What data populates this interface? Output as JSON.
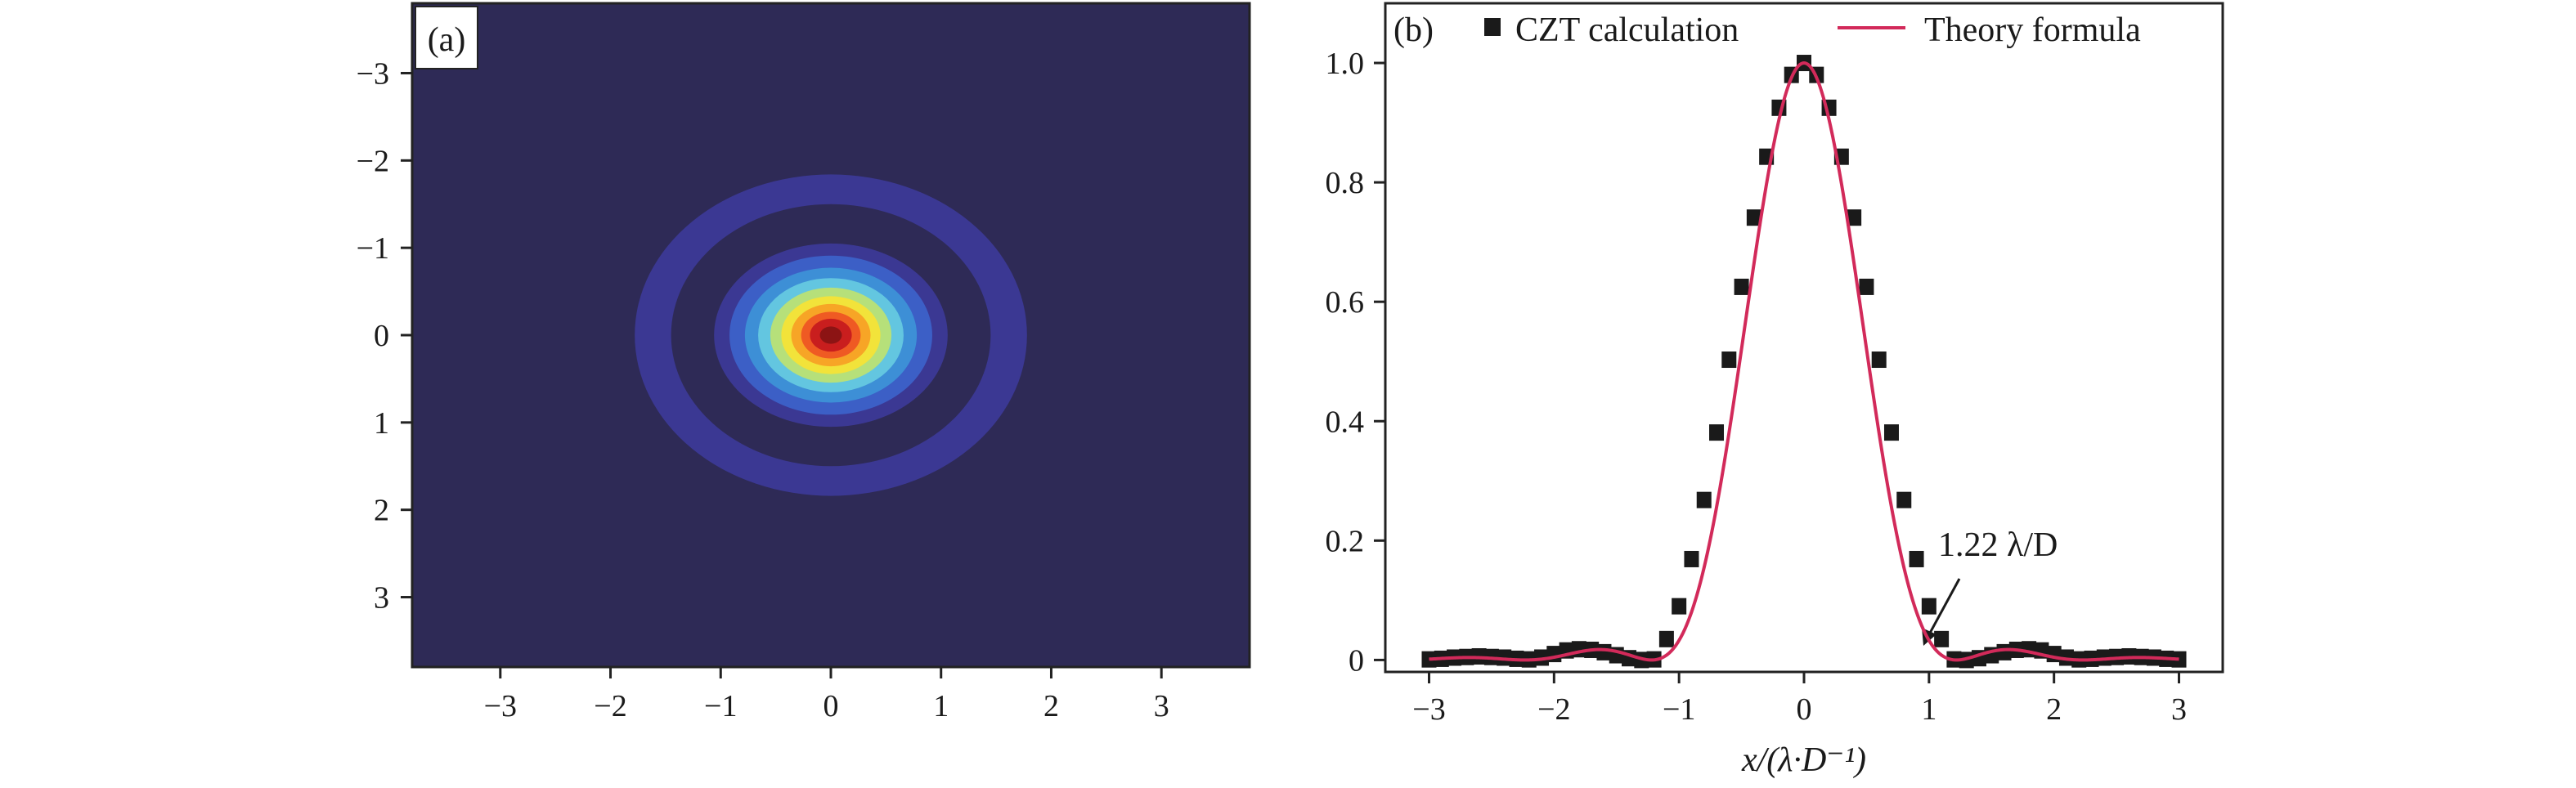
{
  "panel_a": {
    "label": "(a)",
    "colors": [
      "#2e2a56",
      "#3b3893",
      "#3c5fc6",
      "#3d8fd6",
      "#63c6e0",
      "#b6e07a",
      "#f2e33a",
      "#f7a526",
      "#ef5a23",
      "#c91e1e",
      "#8c1414"
    ]
  },
  "panel_b": {
    "label": "(b)",
    "annotation": "1.22 λ/D",
    "colors": {
      "markers": "#1a1a1a",
      "theory": "#d22a5a"
    }
  },
  "chart_data": [
    {
      "type": "heatmap",
      "description": "Airy diffraction pattern intensity",
      "x_ticks": [
        "−3",
        "−2",
        "−1",
        "0",
        "1",
        "2",
        "3"
      ],
      "y_ticks": [
        "−3",
        "−2",
        "−1",
        "0",
        "1",
        "2",
        "3"
      ],
      "xlim": [
        -3.8,
        3.8
      ],
      "ylim": [
        -3.8,
        3.8
      ],
      "y_inverted": true,
      "function": "[2 J1(pi r)/(pi r)]^2",
      "grid": false
    },
    {
      "type": "line",
      "xlabel": "x/(λ·D⁻¹)",
      "x_ticks": [
        "−3",
        "−2",
        "−1",
        "0",
        "1",
        "2",
        "3"
      ],
      "y_ticks": [
        "0",
        "0.2",
        "0.4",
        "0.6",
        "0.8",
        "1.0"
      ],
      "xlim": [
        -3.35,
        3.35
      ],
      "ylim": [
        -0.02,
        1.1
      ],
      "legend_position": "top",
      "grid": false,
      "series": [
        {
          "name": "CZT calculation",
          "style": "square-markers",
          "x": [
            -3.0,
            -2.9,
            -2.8,
            -2.7,
            -2.6,
            -2.5,
            -2.4,
            -2.3,
            -2.2,
            -2.1,
            -2.0,
            -1.9,
            -1.8,
            -1.7,
            -1.6,
            -1.5,
            -1.4,
            -1.3,
            -1.2,
            -1.1,
            -1.0,
            -0.9,
            -0.8,
            -0.7,
            -0.6,
            -0.5,
            -0.4,
            -0.3,
            -0.2,
            -0.1,
            0.0,
            0.1,
            0.2,
            0.3,
            0.4,
            0.5,
            0.6,
            0.7,
            0.8,
            0.9,
            1.0,
            1.1,
            1.2,
            1.3,
            1.4,
            1.5,
            1.6,
            1.7,
            1.8,
            1.9,
            2.0,
            2.1,
            2.2,
            2.3,
            2.4,
            2.5,
            2.6,
            2.7,
            2.8,
            2.9,
            3.0
          ],
          "y": [
            0.001,
            0.002,
            0.004,
            0.005,
            0.006,
            0.005,
            0.004,
            0.002,
            0.001,
            0.004,
            0.01,
            0.016,
            0.018,
            0.017,
            0.013,
            0.008,
            0.003,
            0.0,
            0.001,
            0.035,
            0.09,
            0.169,
            0.268,
            0.381,
            0.503,
            0.625,
            0.741,
            0.843,
            0.925,
            0.98,
            1.0,
            0.98,
            0.925,
            0.843,
            0.741,
            0.625,
            0.503,
            0.381,
            0.268,
            0.169,
            0.09,
            0.035,
            0.001,
            0.0,
            0.003,
            0.008,
            0.013,
            0.017,
            0.018,
            0.016,
            0.01,
            0.004,
            0.001,
            0.002,
            0.004,
            0.005,
            0.006,
            0.005,
            0.004,
            0.002,
            0.001
          ]
        },
        {
          "name": "Theory formula",
          "style": "line",
          "function": "[2 J1(pi x)/(pi x)]^2",
          "x_range": [
            -3.0,
            3.0
          ]
        }
      ],
      "annotations": [
        {
          "text": "1.22 λ/D",
          "points_to_x": 1.22,
          "points_to_y": 0.0
        }
      ]
    }
  ]
}
